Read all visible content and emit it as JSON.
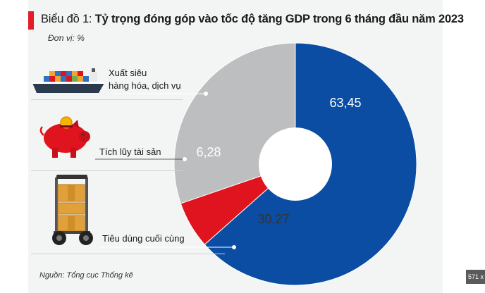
{
  "header": {
    "title_prefix": "Biểu đồ 1: ",
    "title_main": "Tỷ trọng đóng góp vào tốc độ tăng GDP trong 6 tháng đầu năm 2023"
  },
  "unit_label": "Đơn vị: %",
  "source_label": "Nguồn: Tổng cục Thống kê",
  "badge_text": "571 x",
  "legend": {
    "export_line1": "Xuất siêu",
    "export_line2": "hàng hóa, dịch vụ",
    "savings": "Tích lũy tài sản",
    "consumption": "Tiêu dùng cuối cùng"
  },
  "icons": [
    "cargo-ship-icon",
    "piggy-bank-icon",
    "hand-truck-boxes-icon"
  ],
  "chart_data": {
    "type": "pie",
    "style": "donut",
    "title": "Tỷ trọng đóng góp vào tốc độ tăng GDP trong 6 tháng đầu năm 2023",
    "unit": "%",
    "categories": [
      "Xuất siêu hàng hóa, dịch vụ",
      "Tích lũy tài sản",
      "Tiêu dùng cuối cùng"
    ],
    "values": [
      63.45,
      6.28,
      30.27
    ],
    "value_labels": [
      "63,45",
      "6,28",
      "30,27"
    ],
    "colors": [
      "#0a4da2",
      "#e0141e",
      "#bdbebf"
    ]
  }
}
